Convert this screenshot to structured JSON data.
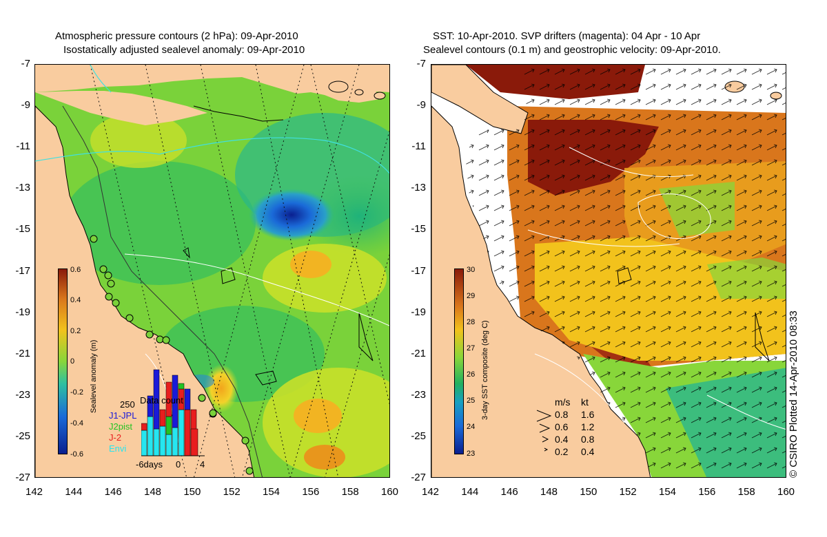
{
  "left_panel": {
    "title_line1": "Atmospheric pressure contours (2 hPa): 09-Apr-2010",
    "title_line2": "Isostatically adjusted sealevel anomaly: 09-Apr-2010",
    "colorbar": {
      "title": "Sealevel anomaly (m)",
      "labels": [
        "0.6",
        "0.4",
        "0.2",
        "0",
        "-0.2",
        "-0.4",
        "-0.6"
      ]
    },
    "data_count": {
      "title": "Data count",
      "max_label": "250",
      "legend": [
        {
          "name": "J1-JPL",
          "color": "#1a1ad8"
        },
        {
          "name": "J2pist",
          "color": "#22c322"
        },
        {
          "name": "J-2",
          "color": "#e81e1e"
        },
        {
          "name": "Envi",
          "color": "#26e6f0"
        }
      ],
      "x_labels": [
        "-6days",
        "0",
        "4"
      ]
    }
  },
  "right_panel": {
    "title_line1": "SST: 10-Apr-2010. SVP drifters (magenta): 04 Apr - 10 Apr",
    "title_line2": "Sealevel contours (0.1 m) and geostrophic velocity: 09-Apr-2010.",
    "colorbar": {
      "title": "3-day SST composite (deg C)",
      "labels": [
        "30",
        "29",
        "28",
        "27",
        "26",
        "25",
        "24",
        "23"
      ]
    },
    "velocity_legend": {
      "header_ms": "m/s",
      "header_kt": "kt",
      "rows": [
        {
          "ms": "0.8",
          "kt": "1.6"
        },
        {
          "ms": "0.6",
          "kt": "1.2"
        },
        {
          "ms": "0.4",
          "kt": "0.8"
        },
        {
          "ms": "0.2",
          "kt": "0.4"
        }
      ]
    }
  },
  "axes": {
    "y_labels": [
      "-7",
      "-9",
      "-11",
      "-13",
      "-15",
      "-17",
      "-19",
      "-21",
      "-23",
      "-25",
      "-27"
    ],
    "x_labels": [
      "142",
      "144",
      "146",
      "148",
      "150",
      "152",
      "154",
      "156",
      "158",
      "160"
    ]
  },
  "credit": "© CSIRO Plotted 14-Apr-2010 08:33",
  "colors": {
    "land": "#f9cc9f",
    "ocean_green": "#88d63a",
    "sst_warm": "#d9761c",
    "sst_hot": "#8a1a0a"
  }
}
